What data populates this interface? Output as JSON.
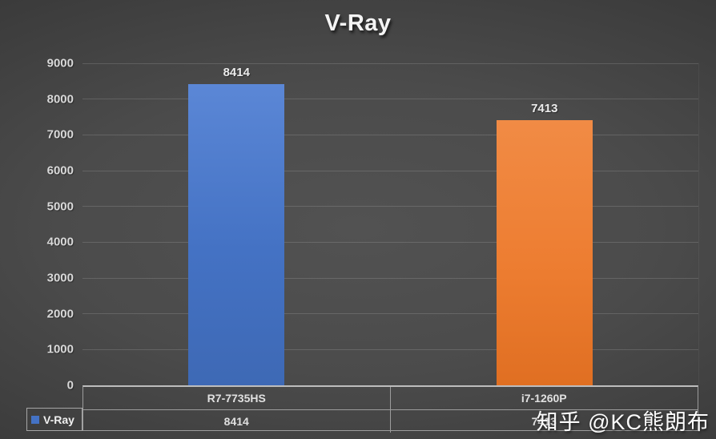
{
  "title": "V-Ray",
  "watermark": "知乎 @KC熊朗布",
  "colors": {
    "background_center": "#4d4d4d",
    "background_edge": "#262626",
    "gridline": "#5c5c5c",
    "axis_line": "#bdbdbd",
    "table_border": "#9c9c9c",
    "text_light": "#e8e8e8",
    "points": [
      {
        "light": "#5b87d6",
        "base": "#4472c4",
        "dark": "#3e69b5"
      },
      {
        "light": "#f18b45",
        "base": "#ed7d31",
        "dark": "#e06f22"
      }
    ]
  },
  "legend": {
    "label": "V-Ray"
  },
  "chart_data": {
    "type": "bar",
    "title": "V-Ray",
    "categories": [
      "R7-7735HS",
      "i7-1260P"
    ],
    "series": [
      {
        "name": "V-Ray",
        "values": [
          8414,
          7413
        ]
      }
    ],
    "xlabel": "",
    "ylabel": "",
    "ylim": [
      0,
      9000
    ],
    "ytick_step": 1000,
    "yticks": [
      0,
      1000,
      2000,
      3000,
      4000,
      5000,
      6000,
      7000,
      8000,
      9000
    ],
    "grid": true,
    "data_labels": true,
    "legend_position": "bottom-left",
    "data_table_shown": true
  }
}
